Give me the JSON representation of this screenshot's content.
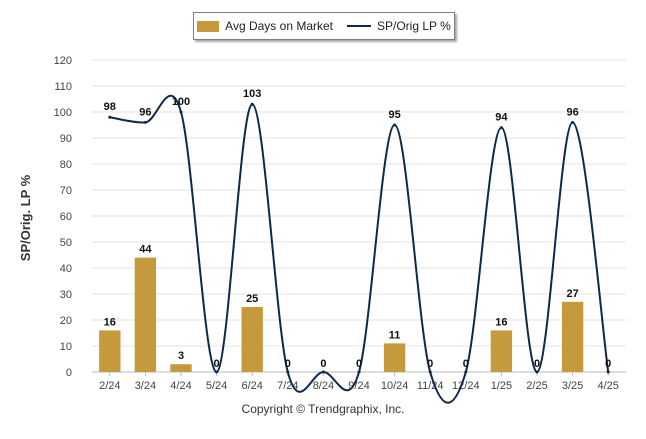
{
  "legend": {
    "bar_label": "Avg Days on Market",
    "line_label": "SP/Orig LP %"
  },
  "copyright": "Copyright © Trendgraphix, Inc.",
  "colors": {
    "bar": "#c49a3c",
    "line": "#0d2a4a",
    "grid": "#e3e3e3",
    "axis_text": "#444444"
  },
  "chart_data": {
    "type": "bar",
    "title": "",
    "xlabel": "",
    "ylabel": "SP/Orig. LP %",
    "ylim": [
      0,
      120
    ],
    "yticks": [
      0,
      10,
      20,
      30,
      40,
      50,
      60,
      70,
      80,
      90,
      100,
      110,
      120
    ],
    "grid": true,
    "legend_position": "top",
    "categories": [
      "2/24",
      "3/24",
      "4/24",
      "5/24",
      "6/24",
      "7/24",
      "8/24",
      "9/24",
      "10/24",
      "11/24",
      "12/24",
      "1/25",
      "2/25",
      "3/25",
      "4/25"
    ],
    "series": [
      {
        "name": "Avg Days on Market",
        "type": "bar",
        "values": [
          16,
          44,
          3,
          0,
          25,
          0,
          0,
          0,
          11,
          0,
          0,
          16,
          0,
          27,
          0
        ],
        "labels": [
          "16",
          "44",
          "3",
          "0",
          "25",
          "0",
          "0",
          "0",
          "11",
          "0",
          "0",
          "16",
          "0",
          "27",
          "0"
        ]
      },
      {
        "name": "SP/Orig LP %",
        "type": "line",
        "values": [
          98,
          96,
          100,
          0,
          103,
          0,
          0,
          0,
          95,
          0,
          0,
          94,
          0,
          96,
          0
        ],
        "labels": [
          "98",
          "96",
          "100",
          "",
          "103",
          "",
          "",
          "",
          "95",
          "",
          "",
          "94",
          "",
          "96",
          ""
        ]
      }
    ]
  }
}
